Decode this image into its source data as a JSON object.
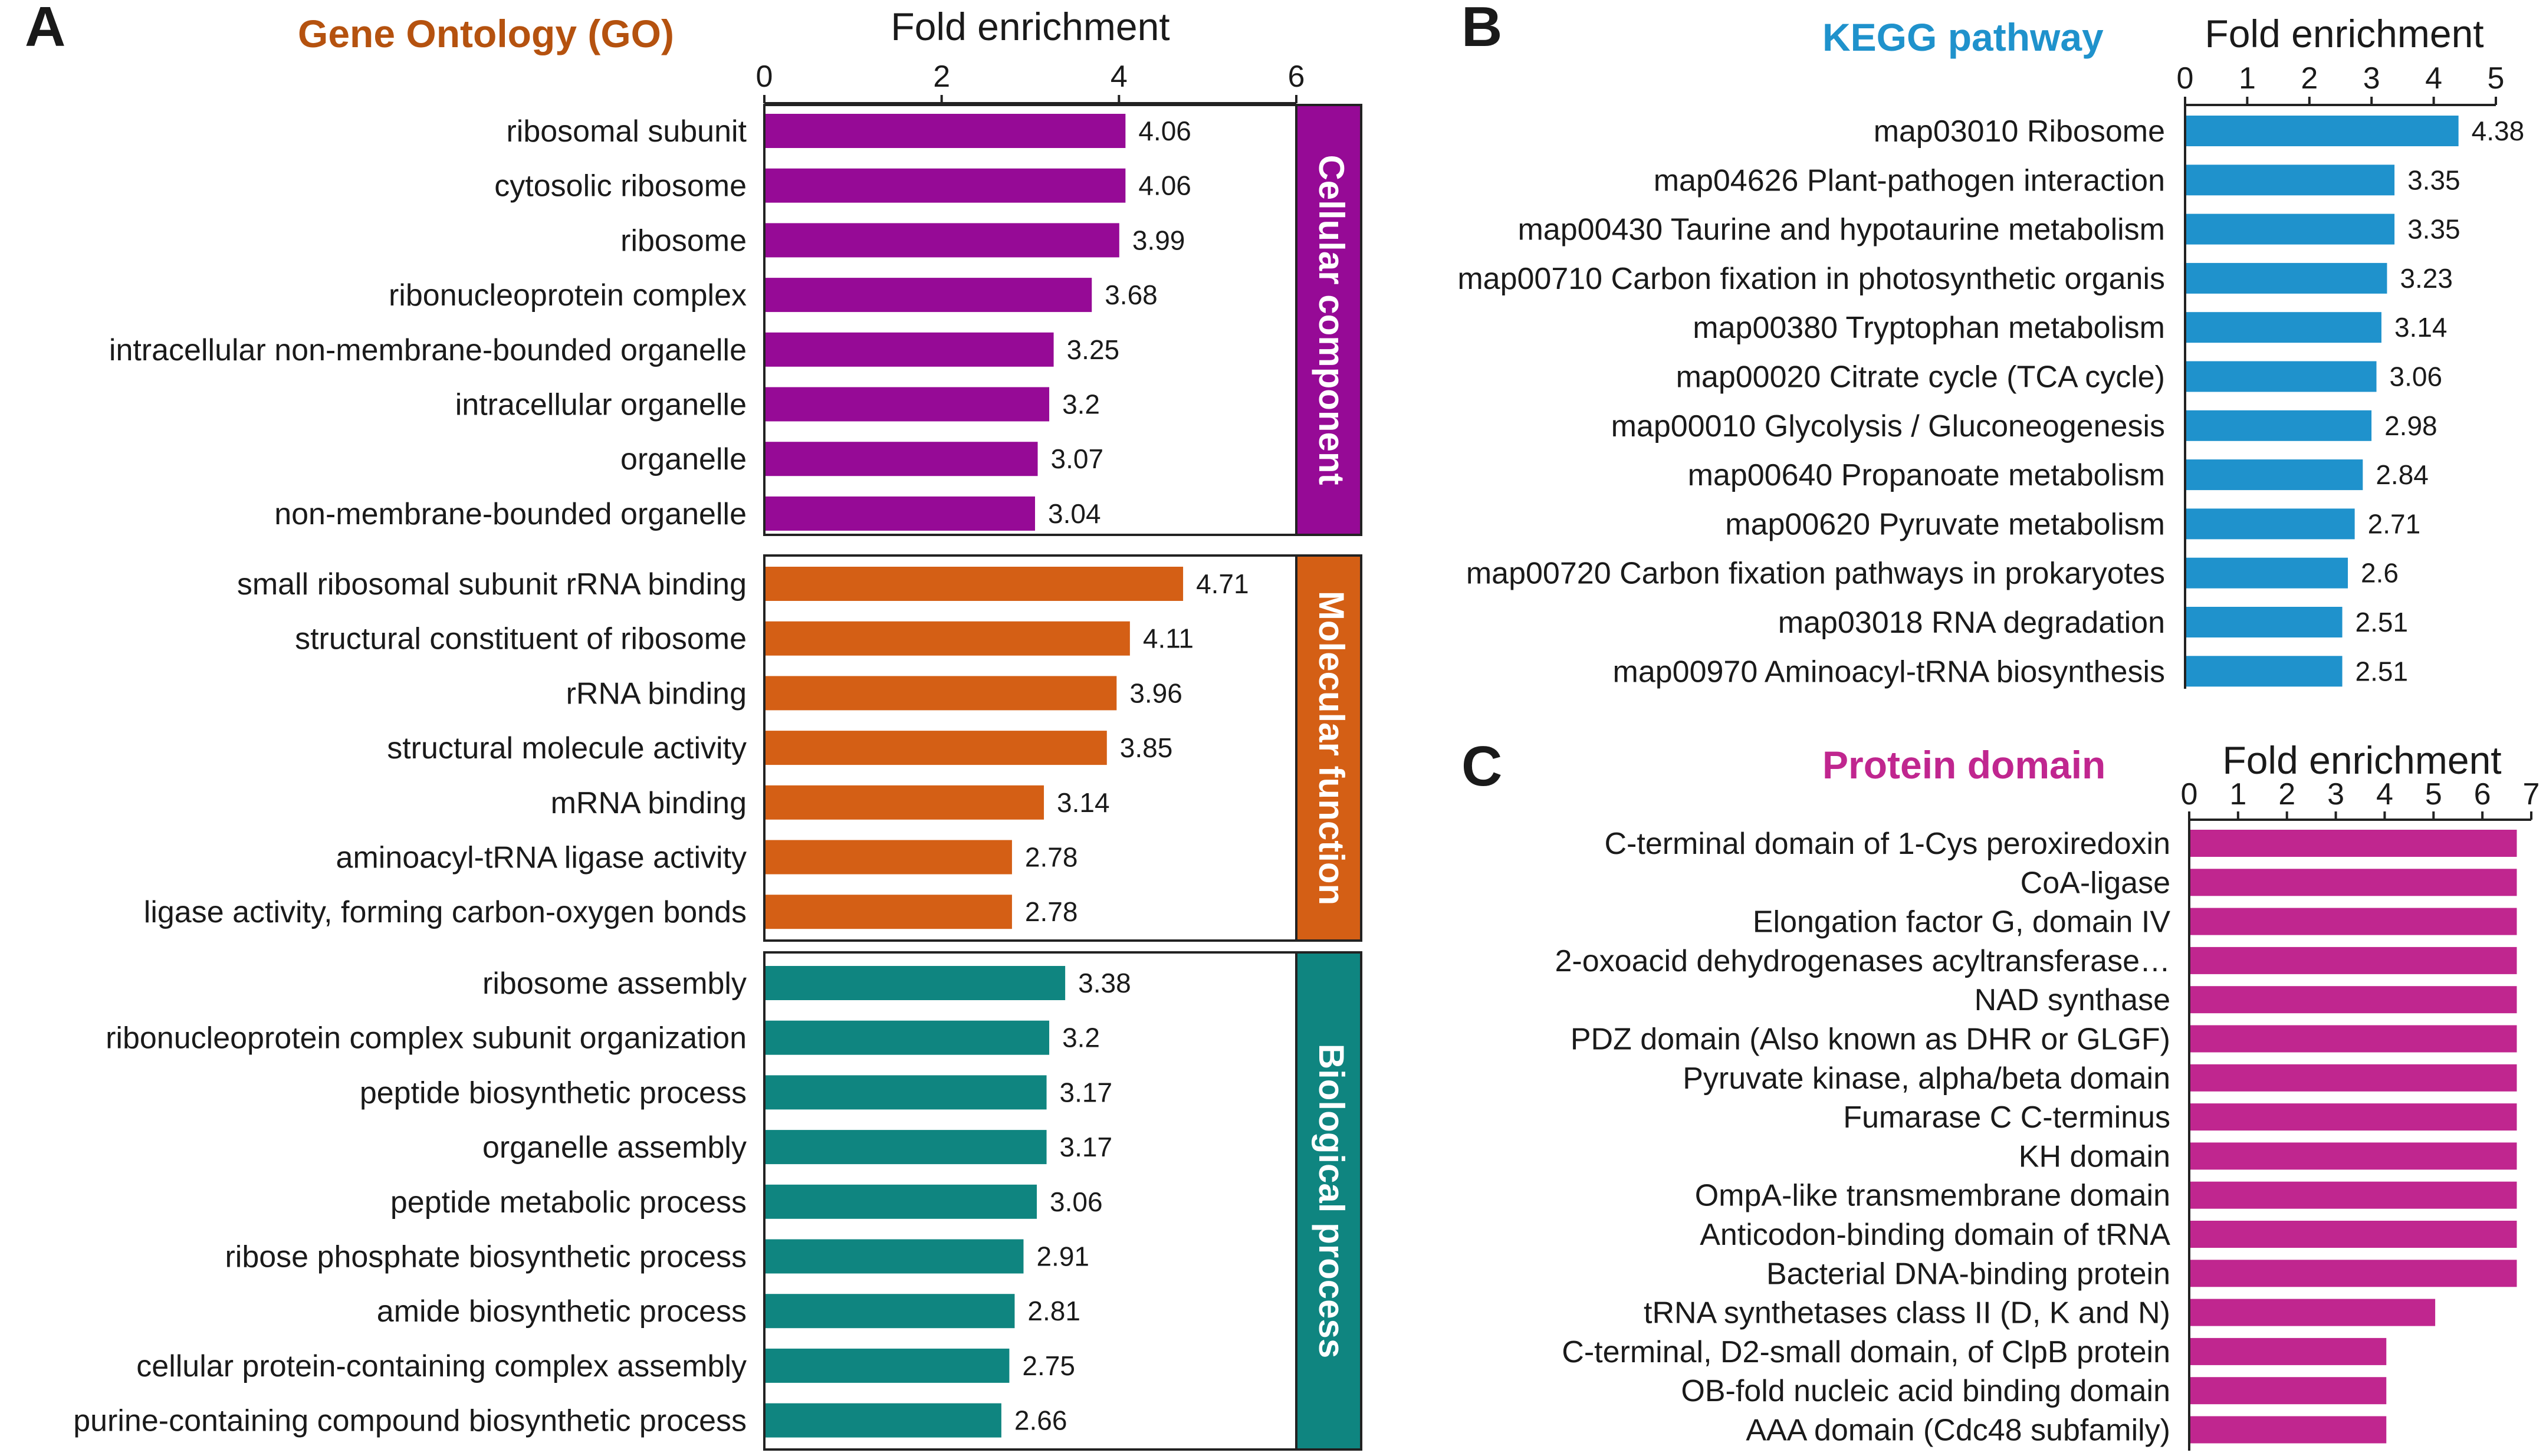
{
  "chart_data": [
    {
      "panel": "A",
      "title": "Gene Ontology (GO)",
      "type": "bar",
      "orientation": "horizontal",
      "xlabel": "Fold enrichment",
      "xlim": [
        0,
        6
      ],
      "xticks": [
        0,
        2,
        4,
        6
      ],
      "colors": {
        "title": "#b5520f"
      },
      "groups": [
        {
          "name": "Cellular component",
          "color": "#960a96",
          "categories": [
            "ribosomal subunit",
            "cytosolic ribosome",
            "ribosome",
            "ribonucleoprotein complex",
            "intracellular non-membrane-bounded organelle",
            "intracellular organelle",
            "organelle",
            "non-membrane-bounded organelle"
          ],
          "values": [
            4.06,
            4.06,
            3.99,
            3.68,
            3.25,
            3.2,
            3.07,
            3.04
          ],
          "value_labels": [
            "4.06",
            "4.06",
            "3.99",
            "3.68",
            "3.25",
            "3.2",
            "3.07",
            "3.04"
          ]
        },
        {
          "name": "Molecular function",
          "color": "#d45f15",
          "categories": [
            "small ribosomal subunit rRNA binding",
            "structural constituent of ribosome",
            "rRNA binding",
            "structural molecule activity",
            "mRNA binding",
            "aminoacyl-tRNA ligase activity",
            "ligase activity, forming carbon-oxygen bonds"
          ],
          "values": [
            4.71,
            4.11,
            3.96,
            3.85,
            3.14,
            2.78,
            2.78
          ],
          "value_labels": [
            "4.71",
            "4.11",
            "3.96",
            "3.85",
            "3.14",
            "2.78",
            "2.78"
          ]
        },
        {
          "name": "Biological process",
          "color": "#0f8580",
          "categories": [
            "ribosome assembly",
            "ribonucleoprotein complex subunit organization",
            "peptide biosynthetic process",
            "organelle assembly",
            "peptide metabolic process",
            "ribose phosphate biosynthetic process",
            "amide biosynthetic process",
            "cellular protein-containing complex assembly",
            "purine-containing compound biosynthetic process"
          ],
          "values": [
            3.38,
            3.2,
            3.17,
            3.17,
            3.06,
            2.91,
            2.81,
            2.75,
            2.66
          ],
          "value_labels": [
            "3.38",
            "3.2",
            "3.17",
            "3.17",
            "3.06",
            "2.91",
            "2.81",
            "2.75",
            "2.66"
          ]
        }
      ]
    },
    {
      "panel": "B",
      "title": "KEGG pathway",
      "type": "bar",
      "orientation": "horizontal",
      "xlabel": "Fold enrichment",
      "xlim": [
        0,
        5
      ],
      "xticks": [
        0,
        1,
        2,
        3,
        4,
        5
      ],
      "colors": {
        "title": "#1f92cc",
        "bar": "#1f92cc"
      },
      "categories": [
        "map03010 Ribosome",
        "map04626 Plant-pathogen interaction",
        "map00430 Taurine and hypotaurine metabolism",
        "map00710 Carbon fixation in photosynthetic organis",
        "map00380 Tryptophan metabolism",
        "map00020 Citrate cycle (TCA cycle)",
        "map00010 Glycolysis / Gluconeogenesis",
        "map00640 Propanoate metabolism",
        "map00620 Pyruvate metabolism",
        "map00720 Carbon fixation pathways in prokaryotes",
        "map03018 RNA degradation",
        "map00970 Aminoacyl-tRNA biosynthesis"
      ],
      "values": [
        4.38,
        3.35,
        3.35,
        3.23,
        3.14,
        3.06,
        2.98,
        2.84,
        2.71,
        2.6,
        2.51,
        2.51
      ],
      "value_labels": [
        "4.38",
        "3.35",
        "3.35",
        "3.23",
        "3.14",
        "3.06",
        "2.98",
        "2.84",
        "2.71",
        "2.6",
        "2.51",
        "2.51"
      ]
    },
    {
      "panel": "C",
      "title": "Protein domain",
      "type": "bar",
      "orientation": "horizontal",
      "xlabel": "Fold enrichment",
      "xlim": [
        0,
        7
      ],
      "xticks": [
        0,
        1,
        2,
        3,
        4,
        5,
        6,
        7
      ],
      "colors": {
        "title": "#c0268f",
        "bar": "#c0268f"
      },
      "categories": [
        "C-terminal domain of 1-Cys peroxiredoxin",
        "CoA-ligase",
        "Elongation factor G, domain IV",
        "2-oxoacid dehydrogenases acyltransferase…",
        "NAD synthase",
        "PDZ domain (Also known as DHR or GLGF)",
        "Pyruvate kinase, alpha/beta domain",
        "Fumarase C C-terminus",
        "KH domain",
        "OmpA-like transmembrane domain",
        "Anticodon-binding domain of tRNA",
        "Bacterial DNA-binding protein",
        "tRNA synthetases class II (D, K and N)",
        "C-terminal, D2-small domain, of ClpB protein",
        "OB-fold nucleic acid binding domain",
        "AAA domain (Cdc48 subfamily)"
      ],
      "values": [
        6.68,
        6.68,
        6.68,
        6.68,
        6.68,
        6.68,
        6.68,
        6.68,
        6.68,
        6.68,
        6.68,
        6.68,
        5.01,
        4.01,
        4.01,
        4.01
      ]
    }
  ]
}
